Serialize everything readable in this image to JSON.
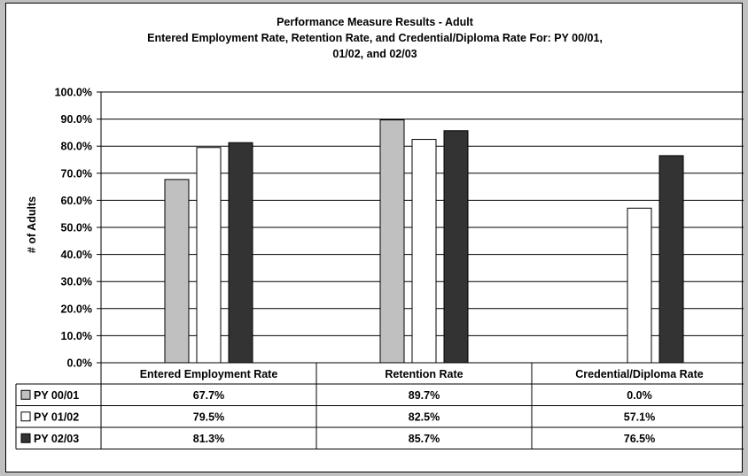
{
  "chart_data": {
    "type": "bar",
    "title": [
      "Performance Measure Results - Adult",
      "Entered Employment Rate, Retention Rate, and Credential/Diploma Rate For: PY 00/01,",
      "01/02, and 02/03"
    ],
    "ylabel": "# of Adults",
    "xlabel": "",
    "ylim": [
      0,
      100
    ],
    "ytick_labels": [
      "0.0%",
      "10.0%",
      "20.0%",
      "30.0%",
      "40.0%",
      "50.0%",
      "60.0%",
      "70.0%",
      "80.0%",
      "90.0%",
      "100.0%"
    ],
    "grid": true,
    "legend": "data-table",
    "categories": [
      "Entered Employment Rate",
      "Retention Rate",
      "Credential/Diploma Rate"
    ],
    "series": [
      {
        "name": "PY 00/01",
        "color": "#c0c0c0",
        "values": [
          67.7,
          89.7,
          0.0
        ],
        "labels": [
          "67.7%",
          "89.7%",
          "0.0%"
        ]
      },
      {
        "name": "PY 01/02",
        "color": "#ffffff",
        "values": [
          79.5,
          82.5,
          57.1
        ],
        "labels": [
          "79.5%",
          "82.5%",
          "57.1%"
        ]
      },
      {
        "name": "PY 02/03",
        "color": "#333333",
        "values": [
          81.3,
          85.7,
          76.5
        ],
        "labels": [
          "81.3%",
          "85.7%",
          "76.5%"
        ]
      }
    ]
  }
}
